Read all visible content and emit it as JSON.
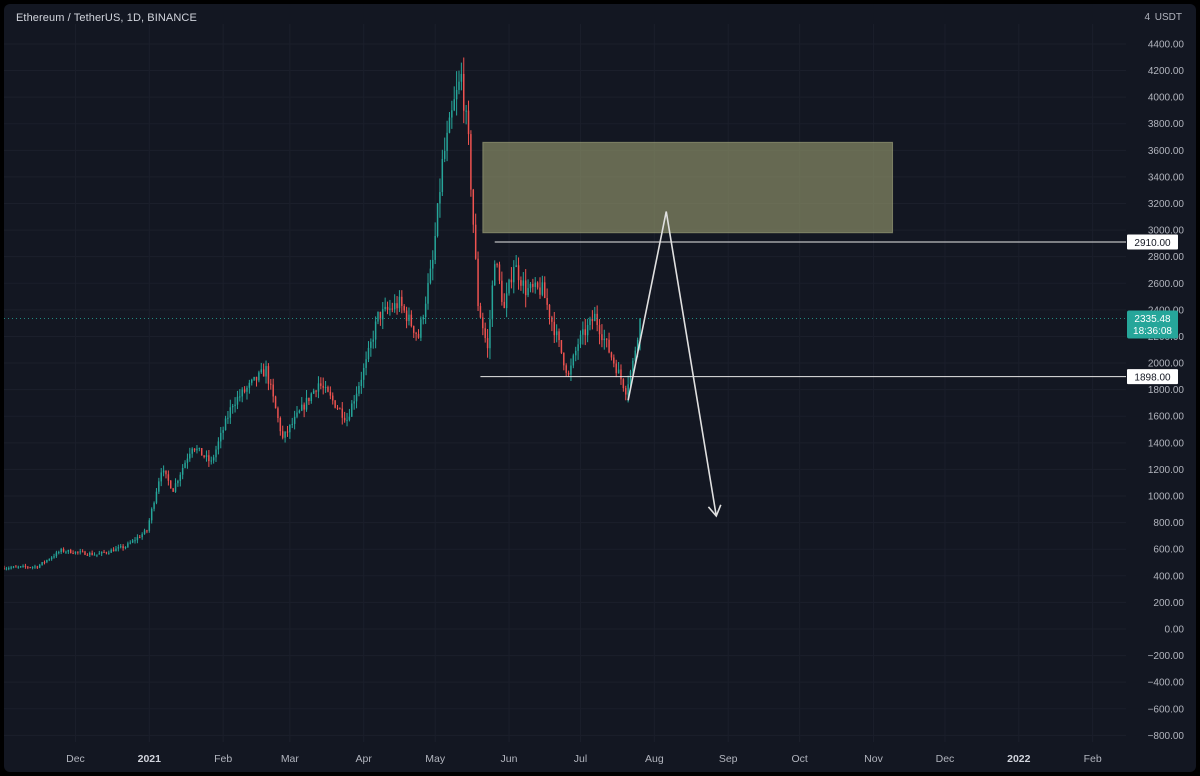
{
  "header": {
    "title": "Ethereum / TetherUS, 1D, BINANCE",
    "unit": "USDT",
    "unit_mark": "4"
  },
  "chart_data": {
    "type": "candlestick",
    "title": "Ethereum / TetherUS, 1D, BINANCE",
    "y_unit": "USDT",
    "ylim": [
      -850,
      4550
    ],
    "y_ticks": [
      "4400.00",
      "4200.00",
      "4000.00",
      "3800.00",
      "3600.00",
      "3400.00",
      "3200.00",
      "3000.00",
      "2800.00",
      "2600.00",
      "2400.00",
      "2200.00",
      "2000.00",
      "1800.00",
      "1600.00",
      "1400.00",
      "1200.00",
      "1000.00",
      "800.00",
      "600.00",
      "400.00",
      "200.00",
      "0.00",
      "−200.00",
      "−400.00",
      "−600.00",
      "−800.00"
    ],
    "x_start": "2020-11-01",
    "x_end": "2022-02-15",
    "x_ticks": [
      {
        "label": "Dec",
        "date": "2020-12-01",
        "bold": false
      },
      {
        "label": "2021",
        "date": "2021-01-01",
        "bold": true
      },
      {
        "label": "Feb",
        "date": "2021-02-01",
        "bold": false
      },
      {
        "label": "Mar",
        "date": "2021-03-01",
        "bold": false
      },
      {
        "label": "Apr",
        "date": "2021-04-01",
        "bold": false
      },
      {
        "label": "May",
        "date": "2021-05-01",
        "bold": false
      },
      {
        "label": "Jun",
        "date": "2021-06-01",
        "bold": false
      },
      {
        "label": "Jul",
        "date": "2021-07-01",
        "bold": false
      },
      {
        "label": "Aug",
        "date": "2021-08-01",
        "bold": false
      },
      {
        "label": "Sep",
        "date": "2021-09-01",
        "bold": false
      },
      {
        "label": "Oct",
        "date": "2021-10-01",
        "bold": false
      },
      {
        "label": "Nov",
        "date": "2021-11-01",
        "bold": false
      },
      {
        "label": "Dec",
        "date": "2021-12-01",
        "bold": false
      },
      {
        "label": "2022",
        "date": "2022-01-01",
        "bold": true
      },
      {
        "label": "Feb",
        "date": "2022-02-01",
        "bold": false
      }
    ],
    "price_path": [
      [
        "2020-11-01",
        460
      ],
      [
        "2020-11-15",
        470
      ],
      [
        "2020-11-25",
        590
      ],
      [
        "2020-12-10",
        560
      ],
      [
        "2020-12-22",
        620
      ],
      [
        "2020-12-31",
        740
      ],
      [
        "2021-01-06",
        1200
      ],
      [
        "2021-01-11",
        1050
      ],
      [
        "2021-01-19",
        1380
      ],
      [
        "2021-01-27",
        1250
      ],
      [
        "2021-02-05",
        1700
      ],
      [
        "2021-02-19",
        1950
      ],
      [
        "2021-02-26",
        1430
      ],
      [
        "2021-03-13",
        1850
      ],
      [
        "2021-03-25",
        1580
      ],
      [
        "2021-04-02",
        2000
      ],
      [
        "2021-04-07",
        2350
      ],
      [
        "2021-04-16",
        2450
      ],
      [
        "2021-04-24",
        2200
      ],
      [
        "2021-04-30",
        2760
      ],
      [
        "2021-05-04",
        3500
      ],
      [
        "2021-05-09",
        3950
      ],
      [
        "2021-05-12",
        4150
      ],
      [
        "2021-05-15",
        3650
      ],
      [
        "2021-05-19",
        2450
      ],
      [
        "2021-05-23",
        2100
      ],
      [
        "2021-05-26",
        2800
      ],
      [
        "2021-05-30",
        2400
      ],
      [
        "2021-06-03",
        2750
      ],
      [
        "2021-06-08",
        2550
      ],
      [
        "2021-06-15",
        2550
      ],
      [
        "2021-06-21",
        2200
      ],
      [
        "2021-06-26",
        1900
      ],
      [
        "2021-06-30",
        2150
      ],
      [
        "2021-07-07",
        2350
      ],
      [
        "2021-07-14",
        2050
      ],
      [
        "2021-07-20",
        1800
      ],
      [
        "2021-07-23",
        2000
      ],
      [
        "2021-07-26",
        2335
      ]
    ],
    "current_price": {
      "value": 2335.48,
      "label": "2335.48",
      "timer": "18:36:08",
      "color": "#26a69a"
    },
    "levels": [
      {
        "value": 2910,
        "label": "2910.00",
        "from": "2021-05-26"
      },
      {
        "value": 1898,
        "label": "1898.00",
        "from": "2021-05-20"
      }
    ],
    "zone": {
      "x0": "2021-05-21",
      "x1": "2021-11-09",
      "y0": 2980,
      "y1": 3660,
      "color": "#9a9c70"
    },
    "projection": [
      [
        "2021-07-21",
        1720
      ],
      [
        "2021-08-06",
        3140
      ],
      [
        "2021-08-27",
        850
      ]
    ],
    "colors": {
      "up": "#26a69a",
      "down": "#ef5350",
      "background": "#131722",
      "text": "#b2b5be",
      "drawing": "#e0e0e0"
    }
  }
}
